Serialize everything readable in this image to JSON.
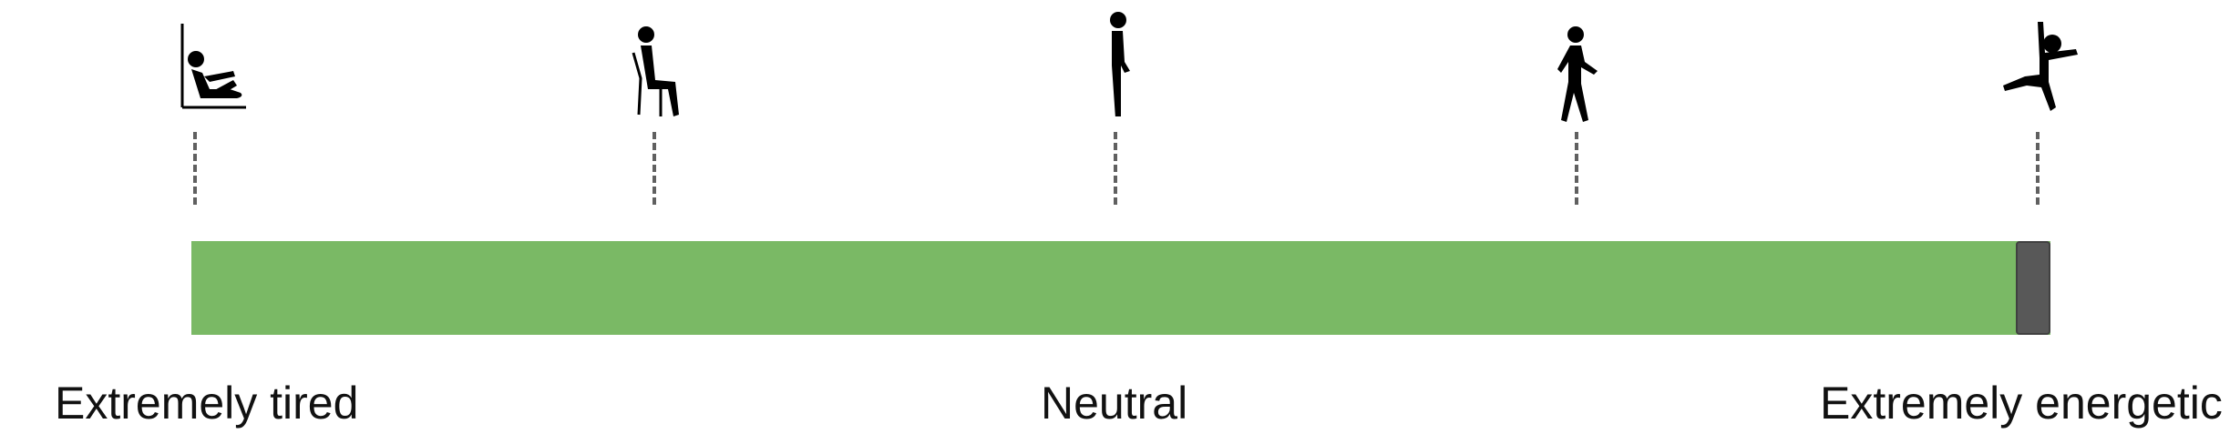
{
  "slider": {
    "value": 1.0,
    "fill_color": "#7ab965",
    "thumb_color": "#585858",
    "labels": {
      "min": "Extremely tired",
      "mid": "Neutral",
      "max": "Extremely energetic"
    },
    "icons": [
      "reclining-person-icon",
      "sitting-person-icon",
      "standing-person-icon",
      "walking-person-icon",
      "jumping-person-icon"
    ]
  }
}
